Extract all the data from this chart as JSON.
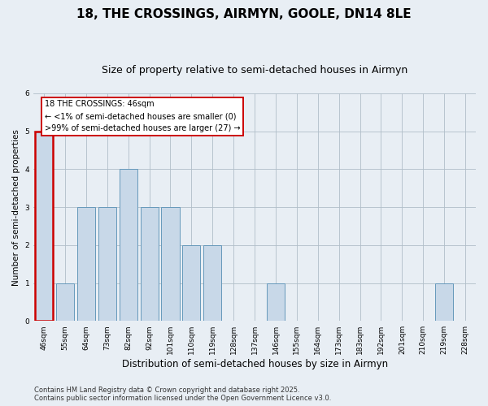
{
  "title": "18, THE CROSSINGS, AIRMYN, GOOLE, DN14 8LE",
  "subtitle": "Size of property relative to semi-detached houses in Airmyn",
  "xlabel": "Distribution of semi-detached houses by size in Airmyn",
  "ylabel": "Number of semi-detached properties",
  "categories": [
    "46sqm",
    "55sqm",
    "64sqm",
    "73sqm",
    "82sqm",
    "92sqm",
    "101sqm",
    "110sqm",
    "119sqm",
    "128sqm",
    "137sqm",
    "146sqm",
    "155sqm",
    "164sqm",
    "173sqm",
    "183sqm",
    "192sqm",
    "201sqm",
    "210sqm",
    "219sqm",
    "228sqm"
  ],
  "values": [
    5,
    1,
    3,
    3,
    4,
    3,
    3,
    2,
    2,
    0,
    0,
    1,
    0,
    0,
    0,
    0,
    0,
    0,
    0,
    1,
    0
  ],
  "highlight_index": 0,
  "bar_color": "#c8d8e8",
  "bar_edge_color": "#6699bb",
  "highlight_edge_color": "#cc0000",
  "background_color": "#e8eef4",
  "annotation_box_color": "#ffffff",
  "annotation_border_color": "#cc0000",
  "annotation_title": "18 THE CROSSINGS: 46sqm",
  "annotation_line1": "← <1% of semi-detached houses are smaller (0)",
  "annotation_line2": ">99% of semi-detached houses are larger (27) →",
  "ylim": [
    0,
    6
  ],
  "yticks": [
    0,
    1,
    2,
    3,
    4,
    5,
    6
  ],
  "footer_line1": "Contains HM Land Registry data © Crown copyright and database right 2025.",
  "footer_line2": "Contains public sector information licensed under the Open Government Licence v3.0.",
  "title_fontsize": 11,
  "subtitle_fontsize": 9,
  "xlabel_fontsize": 8.5,
  "ylabel_fontsize": 7.5,
  "tick_fontsize": 6.5,
  "annotation_fontsize": 7,
  "footer_fontsize": 6
}
